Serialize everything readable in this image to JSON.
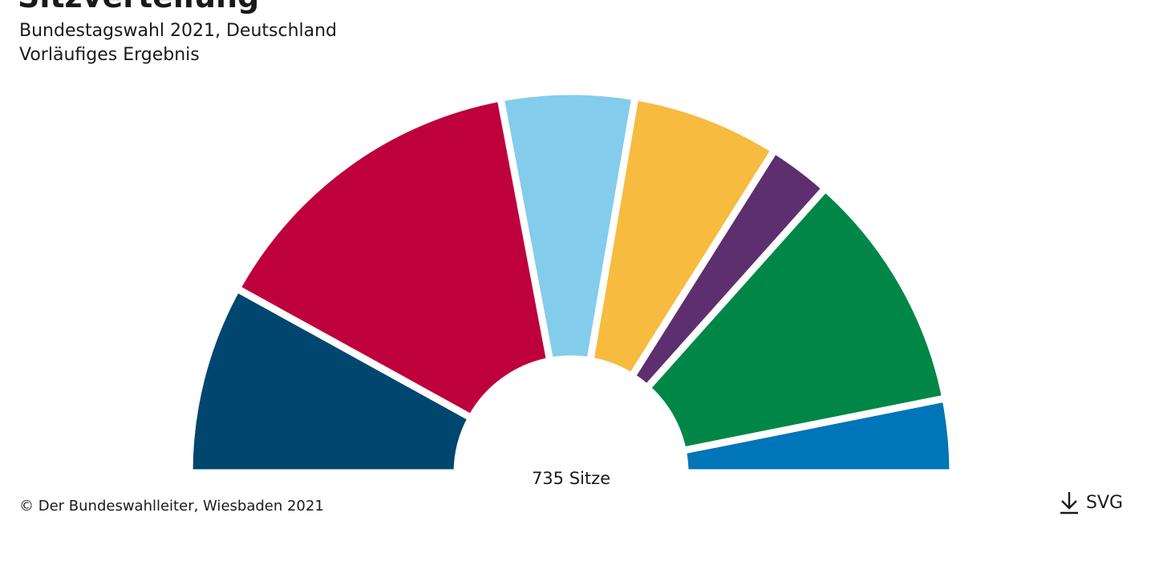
{
  "chart_data": {
    "type": "pie",
    "variant": "parliament-half-donut",
    "title": "Sitzverteilung",
    "subtitle": [
      "Bundestagswahl 2021, Deutschland",
      "Vorläufiges Ergebnis"
    ],
    "total_label": "735 Sitze",
    "total": 735,
    "slices": [
      {
        "value": 118,
        "color": "#00466e"
      },
      {
        "value": 206,
        "color": "#be003c"
      },
      {
        "value": 83,
        "color": "#84ccec"
      },
      {
        "value": 92,
        "color": "#f6bb3f"
      },
      {
        "value": 39,
        "color": "#5d2f6e"
      },
      {
        "value": 151,
        "color": "#008747"
      },
      {
        "value": 46,
        "color": "#0075b8"
      }
    ]
  },
  "footer": {
    "copyright": "© Der Bundeswahlleiter, Wiesbaden 2021",
    "download_label": "SVG",
    "download_icon": "download-icon"
  }
}
